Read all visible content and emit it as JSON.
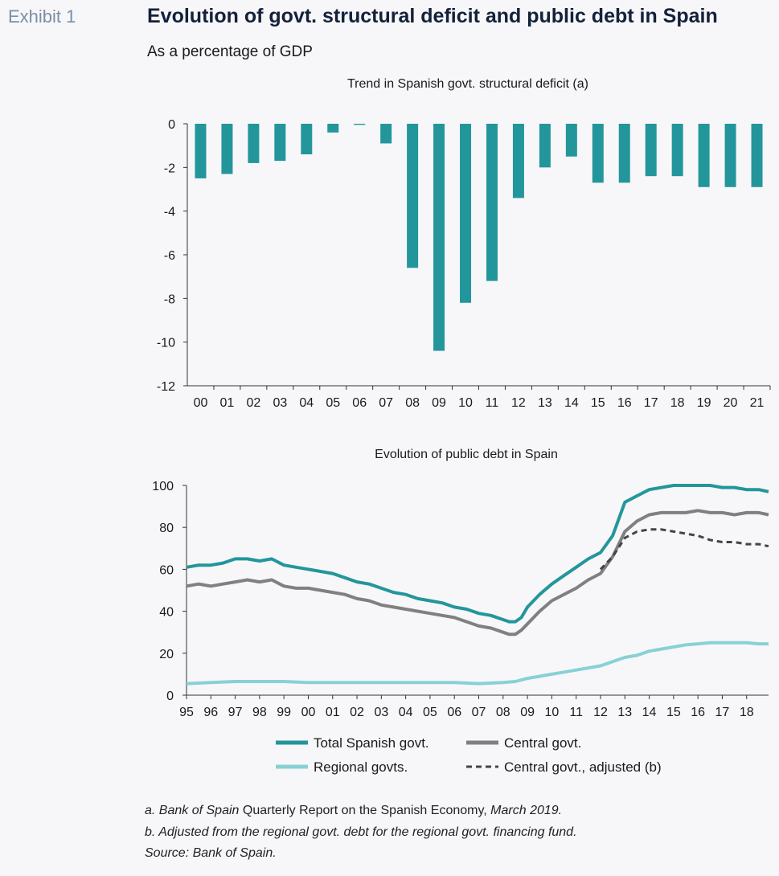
{
  "exhibit_label": "Exhibit 1",
  "title": "Evolution of govt. structural deficit and public debt in Spain",
  "subtitle": "As a percentage of GDP",
  "colors": {
    "teal": "#23969b",
    "grey": "#808080",
    "light_teal": "#88d1d4",
    "dark_grey": "#444444"
  },
  "notes": {
    "a_prefix": "a. Bank of Spain",
    "a_upright": " Quarterly Report on the Spanish Economy,",
    "a_suffix": " March 2019.",
    "b": "b. Adjusted from the regional govt. debt for the regional govt. financing fund.",
    "source": "Source: Bank of Spain."
  },
  "chart_data": [
    {
      "type": "bar",
      "title": "Trend in Spanish govt. structural deficit (a)",
      "xlabel": "",
      "ylabel": "",
      "categories": [
        "00",
        "01",
        "02",
        "03",
        "04",
        "05",
        "06",
        "07",
        "08",
        "09",
        "10",
        "11",
        "12",
        "13",
        "14",
        "15",
        "16",
        "17",
        "18",
        "19",
        "20",
        "21"
      ],
      "values": [
        -2.5,
        -2.3,
        -1.8,
        -1.7,
        -1.4,
        -0.4,
        -0.05,
        -0.9,
        -6.6,
        -10.4,
        -8.2,
        -7.2,
        -3.4,
        -2.0,
        -1.5,
        -2.7,
        -2.7,
        -2.4,
        -2.4,
        -2.9,
        -2.9,
        -2.9
      ],
      "ylim": [
        -12,
        0
      ],
      "yticks": [
        "0",
        "-2",
        "-4",
        "-6",
        "-8",
        "-10",
        "-12"
      ],
      "color": "#23969b"
    },
    {
      "type": "line",
      "title": "Evolution of public debt in Spain",
      "xlabel": "",
      "ylabel": "",
      "xticks": [
        "95",
        "96",
        "97",
        "98",
        "99",
        "00",
        "01",
        "02",
        "03",
        "04",
        "05",
        "06",
        "07",
        "08",
        "09",
        "10",
        "11",
        "12",
        "13",
        "14",
        "15",
        "16",
        "17",
        "18"
      ],
      "xlim": [
        1995,
        2018.9
      ],
      "ylim": [
        0,
        100
      ],
      "yticks": [
        "100",
        "80",
        "60",
        "40",
        "20",
        "0"
      ],
      "legend": [
        "Total Spanish govt.",
        "Central govt.",
        "Regional govts.",
        "Central govt., adjusted (b)"
      ],
      "series": [
        {
          "name": "Total Spanish govt.",
          "color": "#23969b",
          "x": [
            1995,
            1995.5,
            1996,
            1996.5,
            1997,
            1997.5,
            1998,
            1998.5,
            1999,
            1999.5,
            2000,
            2000.5,
            2001,
            2001.5,
            2002,
            2002.5,
            2003,
            2003.5,
            2004,
            2004.5,
            2005,
            2005.5,
            2006,
            2006.5,
            2007,
            2007.5,
            2008,
            2008.25,
            2008.5,
            2008.75,
            2009,
            2009.5,
            2010,
            2010.5,
            2011,
            2011.5,
            2012,
            2012.5,
            2013,
            2013.5,
            2014,
            2014.5,
            2015,
            2015.5,
            2016,
            2016.5,
            2017,
            2017.5,
            2018,
            2018.5,
            2018.9
          ],
          "y": [
            61,
            62,
            62,
            63,
            65,
            65,
            64,
            65,
            62,
            61,
            60,
            59,
            58,
            56,
            54,
            53,
            51,
            49,
            48,
            46,
            45,
            44,
            42,
            41,
            39,
            38,
            36,
            35,
            35,
            37,
            42,
            48,
            53,
            57,
            61,
            65,
            68,
            76,
            92,
            95,
            98,
            99,
            100,
            100,
            100,
            100,
            99,
            99,
            98,
            98,
            97
          ]
        },
        {
          "name": "Central govt.",
          "color": "#808080",
          "x": [
            1995,
            1995.5,
            1996,
            1996.5,
            1997,
            1997.5,
            1998,
            1998.5,
            1999,
            1999.5,
            2000,
            2000.5,
            2001,
            2001.5,
            2002,
            2002.5,
            2003,
            2003.5,
            2004,
            2004.5,
            2005,
            2005.5,
            2006,
            2006.5,
            2007,
            2007.5,
            2008,
            2008.25,
            2008.5,
            2008.75,
            2009,
            2009.5,
            2010,
            2010.5,
            2011,
            2011.5,
            2012,
            2012.5,
            2013,
            2013.5,
            2014,
            2014.5,
            2015,
            2015.5,
            2016,
            2016.5,
            2017,
            2017.5,
            2018,
            2018.5,
            2018.9
          ],
          "y": [
            52,
            53,
            52,
            53,
            54,
            55,
            54,
            55,
            52,
            51,
            51,
            50,
            49,
            48,
            46,
            45,
            43,
            42,
            41,
            40,
            39,
            38,
            37,
            35,
            33,
            32,
            30,
            29,
            29,
            31,
            34,
            40,
            45,
            48,
            51,
            55,
            58,
            66,
            78,
            83,
            86,
            87,
            87,
            87,
            88,
            87,
            87,
            86,
            87,
            87,
            86
          ]
        },
        {
          "name": "Regional govts.",
          "color": "#88d1d4",
          "x": [
            1995,
            1996,
            1997,
            1998,
            1999,
            2000,
            2001,
            2002,
            2003,
            2004,
            2005,
            2006,
            2007,
            2008,
            2008.5,
            2009,
            2009.5,
            2010,
            2010.5,
            2011,
            2011.5,
            2012,
            2012.5,
            2013,
            2013.5,
            2014,
            2014.5,
            2015,
            2015.5,
            2016,
            2016.5,
            2017,
            2017.5,
            2018,
            2018.5,
            2018.9
          ],
          "y": [
            5.5,
            6,
            6.5,
            6.5,
            6.5,
            6,
            6,
            6,
            6,
            6,
            6,
            6,
            5.5,
            6,
            6.5,
            8,
            9,
            10,
            11,
            12,
            13,
            14,
            16,
            18,
            19,
            21,
            22,
            23,
            24,
            24.5,
            25,
            25,
            25,
            25,
            24.5,
            24.5
          ]
        },
        {
          "name": "Central govt., adjusted (b)",
          "color": "#444444",
          "dashed": true,
          "x": [
            2012,
            2012.5,
            2013,
            2013.5,
            2014,
            2014.5,
            2015,
            2015.5,
            2016,
            2016.5,
            2017,
            2017.5,
            2018,
            2018.5,
            2018.9
          ],
          "y": [
            60,
            66,
            75,
            78,
            79,
            79,
            78,
            77,
            76,
            74,
            73,
            73,
            72,
            72,
            71
          ]
        }
      ]
    }
  ]
}
